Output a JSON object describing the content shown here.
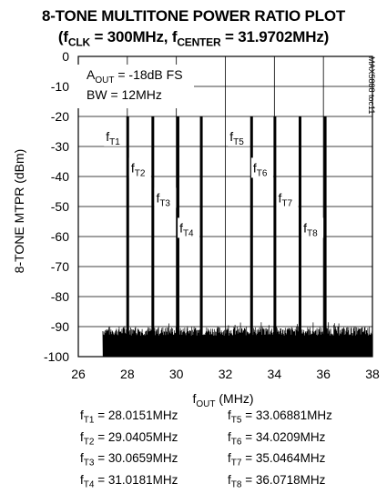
{
  "chart_data": {
    "type": "line",
    "title_line1": "8-TONE MULTITONE POWER RATIO PLOT",
    "title_line2": {
      "open": "(f",
      "clk_sub": "CLK",
      "clk_val": " = 300MHz, f",
      "center_sub": "CENTER",
      "center_val": " = 31.9702MHz)"
    },
    "xlabel": {
      "main": "f",
      "sub": "OUT",
      "unit": " (MHz)"
    },
    "ylabel": "8-TONE MTPR  (dBm)",
    "xlim": [
      26,
      38
    ],
    "ylim": [
      -100,
      0
    ],
    "xticks": [
      26,
      28,
      30,
      32,
      34,
      36,
      38
    ],
    "yticks": [
      0,
      -10,
      -20,
      -30,
      -40,
      -50,
      -60,
      -70,
      -80,
      -90,
      -100
    ],
    "grid": true,
    "noise_floor": [
      -93,
      -90
    ],
    "annotation": {
      "aout_prefix": "A",
      "aout_sub": "OUT",
      "aout_value": " = -18dB FS",
      "bw": "BW = 12MHz"
    },
    "side_label": "MAX5888 toc11",
    "tones": [
      {
        "label": "f",
        "sub": "T1",
        "x": 28.0151,
        "y": -20,
        "label_y": -27.5,
        "value": "28.0151MHz"
      },
      {
        "label": "f",
        "sub": "T2",
        "x": 29.0405,
        "y": -20,
        "label_y": -38,
        "value": "29.0405MHz"
      },
      {
        "label": "f",
        "sub": "T3",
        "x": 30.0659,
        "y": -20,
        "label_y": -48,
        "value": "30.0659MHz"
      },
      {
        "label": "f",
        "sub": "T4",
        "x": 31.0181,
        "y": -20,
        "label_y": -58,
        "value": "31.0181MHz"
      },
      {
        "label": "f",
        "sub": "T5",
        "x": 33.06881,
        "y": -20,
        "label_y": -27.5,
        "value": "33.06881MHz"
      },
      {
        "label": "f",
        "sub": "T6",
        "x": 34.0209,
        "y": -20,
        "label_y": -38,
        "value": "34.0209MHz"
      },
      {
        "label": "f",
        "sub": "T7",
        "x": 35.0464,
        "y": -20,
        "label_y": -48,
        "value": "35.0464MHz"
      },
      {
        "label": "f",
        "sub": "T8",
        "x": 36.0718,
        "y": -20,
        "label_y": -58,
        "value": "36.0718MHz"
      }
    ]
  }
}
